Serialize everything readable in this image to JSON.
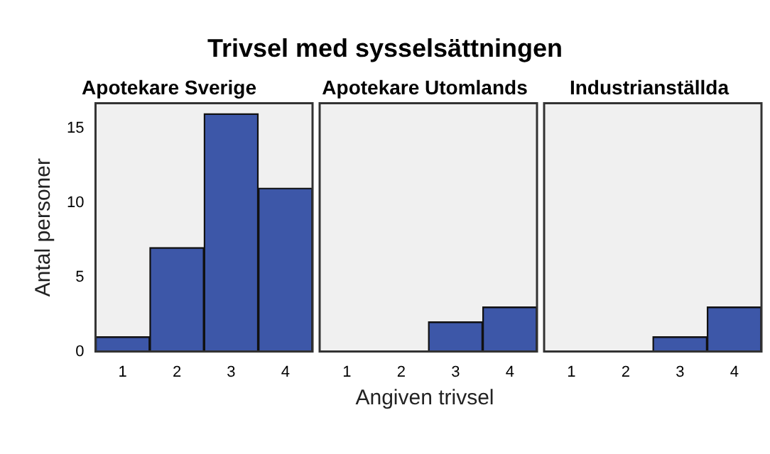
{
  "chart_data": [
    {
      "type": "bar",
      "title": "Trivsel med sysselsättningen",
      "subtitle": "Apotekare Sverige",
      "ylabel": "Antal personer",
      "xlabel": "Angiven trivsel",
      "categories": [
        "1",
        "2",
        "3",
        "4"
      ],
      "values": [
        1,
        7,
        16,
        11
      ],
      "color": "#3d57a8",
      "ylim": [
        0,
        16.7
      ],
      "yticks": [
        0,
        5,
        10,
        15
      ],
      "grid": false
    },
    {
      "type": "bar",
      "subtitle": "Apotekare Utomlands",
      "categories": [
        "1",
        "2",
        "3",
        "4"
      ],
      "values": [
        0,
        0,
        2,
        3
      ],
      "color": "#3d57a8",
      "ylim": [
        0,
        16.7
      ],
      "yticks": [
        0,
        5,
        10,
        15
      ],
      "grid": false,
      "tick_labels": "x"
    },
    {
      "type": "bar",
      "subtitle": "Industrianställda",
      "categories": [
        "1",
        "2",
        "3",
        "4"
      ],
      "values": [
        0,
        0,
        1,
        3
      ],
      "color": "#3d57a8",
      "ylim": [
        0,
        16.7
      ],
      "yticks": [
        0,
        5,
        10,
        15
      ],
      "grid": false,
      "tick_labels": "x"
    }
  ]
}
